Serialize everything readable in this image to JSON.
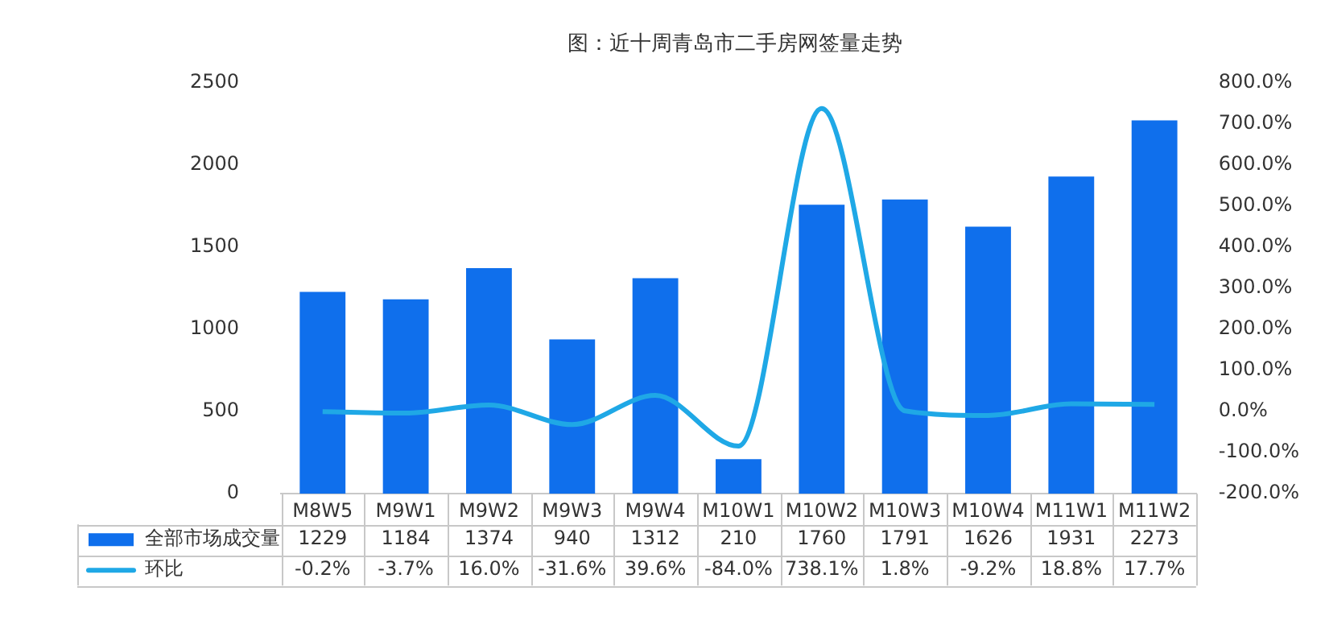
{
  "chart_data": {
    "type": "bar",
    "title": "图：近十周青岛市二手房网签量走势",
    "categories": [
      "M8W5",
      "M9W1",
      "M9W2",
      "M9W3",
      "M9W4",
      "M10W1",
      "M10W2",
      "M10W3",
      "M10W4",
      "M11W1",
      "M11W2"
    ],
    "series": [
      {
        "name": "全部市场成交量",
        "color": "#0f6fec",
        "values": [
          1229,
          1184,
          1374,
          940,
          1312,
          210,
          1760,
          1791,
          1626,
          1931,
          2273
        ],
        "value_labels": [
          "1229",
          "1184",
          "1374",
          "940",
          "1312",
          "210",
          "1760",
          "1791",
          "1626",
          "1931",
          "2273"
        ]
      },
      {
        "name": "环比",
        "type": "line",
        "axis": "y2",
        "color": "#1fa8e6",
        "values": [
          -0.2,
          -3.7,
          16.0,
          -31.6,
          39.6,
          -84.0,
          738.1,
          1.8,
          -9.2,
          18.8,
          17.7
        ],
        "value_labels": [
          "-0.2%",
          "-3.7%",
          "16.0%",
          "-31.6%",
          "39.6%",
          "-84.0%",
          "738.1%",
          "1.8%",
          "-9.2%",
          "18.8%",
          "17.7%"
        ]
      }
    ],
    "ylim": [
      0,
      2500
    ],
    "yticks": [
      0,
      500,
      1000,
      1500,
      2000,
      2500
    ],
    "y2lim": [
      -200,
      800
    ],
    "y2ticks": [
      {
        "value": -200,
        "label": "-200.0%"
      },
      {
        "value": -100,
        "label": "-100.0%"
      },
      {
        "value": 0,
        "label": "0.0%"
      },
      {
        "value": 100,
        "label": "100.0%"
      },
      {
        "value": 200,
        "label": "200.0%"
      },
      {
        "value": 300,
        "label": "300.0%"
      },
      {
        "value": 400,
        "label": "400.0%"
      },
      {
        "value": 500,
        "label": "500.0%"
      },
      {
        "value": 600,
        "label": "600.0%"
      },
      {
        "value": 700,
        "label": "700.0%"
      },
      {
        "value": 800,
        "label": "800.0%"
      }
    ],
    "grid": false,
    "legend": "bottom",
    "marker": "none",
    "line_style": "solid"
  }
}
